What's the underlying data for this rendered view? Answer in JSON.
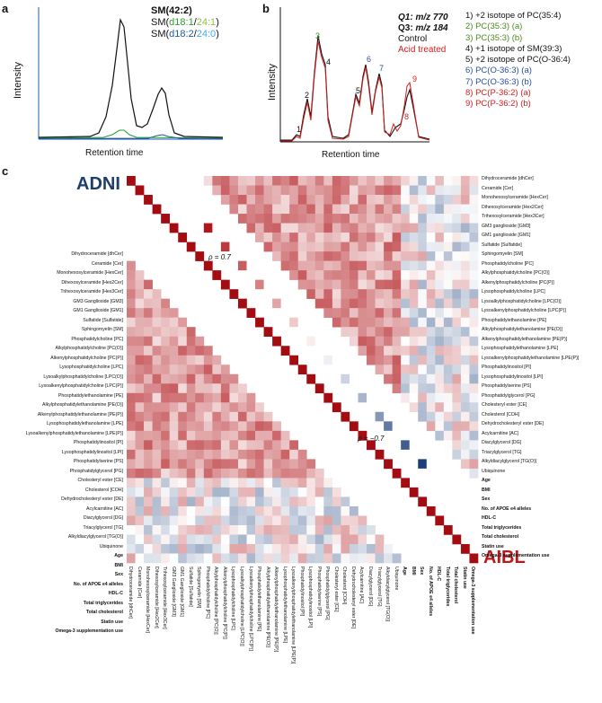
{
  "panel_a": {
    "letter": "a",
    "y_label": "Intensity",
    "x_label": "Retention time",
    "legend": [
      {
        "text": "SM(42:2)",
        "parts": [
          {
            "t": "SM(42:2)",
            "c": "#111111"
          }
        ],
        "bold": true
      },
      {
        "parts": [
          {
            "t": "SM(",
            "c": "#111111"
          },
          {
            "t": "d18:1",
            "c": "#2b9e2b"
          },
          {
            "t": "/",
            "c": "#111111"
          },
          {
            "t": "24:1",
            "c": "#8bc34a"
          },
          {
            "t": ")",
            "c": "#111111"
          }
        ]
      },
      {
        "parts": [
          {
            "t": "SM(",
            "c": "#111111"
          },
          {
            "t": "d18:2",
            "c": "#1e5aa8"
          },
          {
            "t": "/",
            "c": "#111111"
          },
          {
            "t": "24:0",
            "c": "#3fa9f5"
          },
          {
            "t": ")",
            "c": "#111111"
          }
        ]
      }
    ]
  },
  "panel_b": {
    "letter": "b",
    "y_label": "Intensity",
    "x_label": "Retention time",
    "q1": {
      "label": "Q1:",
      "value": "m/z 770"
    },
    "q3": {
      "label": "Q3:",
      "value": "m/z 184"
    },
    "control_label": "Control",
    "acid_label": "Acid treated",
    "peak_labels": [
      {
        "n": "1",
        "color": "#111111"
      },
      {
        "n": "2",
        "color": "#111111"
      },
      {
        "n": "3",
        "color": "#4a8a1e"
      },
      {
        "n": "4",
        "color": "#111111"
      },
      {
        "n": "5",
        "color": "#111111"
      },
      {
        "n": "6",
        "color": "#2b4fa3"
      },
      {
        "n": "7",
        "color": "#2b4fa3"
      },
      {
        "n": "8",
        "color": "#d42020"
      },
      {
        "n": "9",
        "color": "#d42020"
      }
    ],
    "legend": [
      {
        "text": "1) +2 isotope of PC(35:4)",
        "color": "#111111"
      },
      {
        "text": "2) PC(35:3) (a)",
        "color": "#4a8a1e"
      },
      {
        "text": "3) PC(35:3) (b)",
        "color": "#4a8a1e"
      },
      {
        "text": "4) +1 isotope of SM(39:3)",
        "color": "#111111"
      },
      {
        "text": "5) +2 isotope of PC(O-36:4)",
        "color": "#111111"
      },
      {
        "text": "6) PC(O-36:3) (a)",
        "color": "#2b4fa3"
      },
      {
        "text": "7) PC(O-36:3) (b)",
        "color": "#2b4fa3"
      },
      {
        "text": "8) PC(P-36:2) (a)",
        "color": "#d42020"
      },
      {
        "text": "9) PC(P-36:2) (b)",
        "color": "#d42020"
      }
    ]
  },
  "panel_c": {
    "letter": "c",
    "adni_label": "ADNI",
    "aibl_label": "AIBL",
    "rho_pos": "ρ = 0.7",
    "rho_neg": "ρ = −0.7",
    "colors": {
      "positive": "#b0161b",
      "negative": "#1c3f7a",
      "adni": "#1c3f6e",
      "aibl": "#c0151a"
    },
    "rows": [
      {
        "label": "Dihydroceramide [dhCer]",
        "bold": false
      },
      {
        "label": "Ceramide [Cer]",
        "bold": false
      },
      {
        "label": "Monohexosylceramide [HexCer]",
        "bold": false
      },
      {
        "label": "Dihexosylceramide [Hex2Cer]",
        "bold": false
      },
      {
        "label": "Trihexosylceramide [Hex3Cer]",
        "bold": false
      },
      {
        "label": "GM3 ganglioside [GM3]",
        "bold": false
      },
      {
        "label": "GM1 ganglioside [GM1]",
        "bold": false
      },
      {
        "label": "Sulfatide [Sulfatide]",
        "bold": false
      },
      {
        "label": "Sphingomyelin [SM]",
        "bold": false
      },
      {
        "label": "Phosphatidylcholine [PC]",
        "bold": false
      },
      {
        "label": "Alkylphosphatidylcholine [PC(O)]",
        "bold": false
      },
      {
        "label": "Alkenylphosphatidylcholine [PC(P)]",
        "bold": false
      },
      {
        "label": "Lysophosphatidylcholine [LPC]",
        "bold": false
      },
      {
        "label": "Lysoalkylphosphatidylcholine [LPC(O)]",
        "bold": false
      },
      {
        "label": "Lysoalkenylphosphatidylcholine [LPC(P)]",
        "bold": false
      },
      {
        "label": "Phosphatidylethanolamine [PE]",
        "bold": false
      },
      {
        "label": "Alkylphosphatidylethanolamine [PE(O)]",
        "bold": false
      },
      {
        "label": "Alkenylphosphatidylethanolamine [PE(P)]",
        "bold": false
      },
      {
        "label": "Lysophosphatidylethanolamine [LPE]",
        "bold": false
      },
      {
        "label": "Lysoalkenylphosphatidylethanolamine [LPE(P)]",
        "bold": false
      },
      {
        "label": "Phosphatidylinositol [PI]",
        "bold": false
      },
      {
        "label": "Lysophosphatidylinositol [LPI]",
        "bold": false
      },
      {
        "label": "Phosphatidylserine [PS]",
        "bold": false
      },
      {
        "label": "Phosphatidylglycerol [PG]",
        "bold": false
      },
      {
        "label": "Cholesteryl ester [CE]",
        "bold": false
      },
      {
        "label": "Cholesterol [COH]",
        "bold": false
      },
      {
        "label": "Dehydrocholesteryl ester [DE]",
        "bold": false
      },
      {
        "label": "Acylcarnitine [AC]",
        "bold": false
      },
      {
        "label": "Diacylglycerol [DG]",
        "bold": false
      },
      {
        "label": "Triacylglycerol [TG]",
        "bold": false
      },
      {
        "label": "Alkyldiacylglycerol [TG(O)]",
        "bold": false
      },
      {
        "label": "Ubiquinone",
        "bold": false
      },
      {
        "label": "Age",
        "bold": true
      },
      {
        "label": "BMI",
        "bold": true
      },
      {
        "label": "Sex",
        "bold": true
      },
      {
        "label": "No. of APOE e4 alleles",
        "bold": true
      },
      {
        "label": "HDL-C",
        "bold": true
      },
      {
        "label": "Total triglycerides",
        "bold": true
      },
      {
        "label": "Total cholesterol",
        "bold": true
      },
      {
        "label": "Statin use",
        "bold": true
      },
      {
        "label": "Omega-3 supplementation use",
        "bold": true
      }
    ],
    "left_labels": [
      "Dihydroceramide [dhCer]",
      "Ceramide [Cer]",
      "Monohexosylceramide [HexCer]",
      "Dihexosylceramide [Hex2Cer]",
      "Trihexosylceramide [Hex3Cer]",
      "GM3 Ganglioside [GM3]",
      "GM1 Ganglioside [GM1]",
      "Sulfatide [Sulfatide]",
      "Sphingomyelin [SM]",
      "Phosphatidylcholine [PC]",
      "Alkylphosphatidylcholine [PC(O)]",
      "Alkenylphosphatidylcholine [PC(P)]",
      "Lysophosphatidylcholine [LPC]",
      "Lysoalkylphosphatidylcholine [LPC(O)]",
      "Lysoalkenylphosphatidylcholine [LPC(P)]",
      "Phosphatidylethanolamine [PE]",
      "Alkylphosphatidylethanolamine [PE(O)]",
      "Alkenylphosphatidylethanolamine [PE(P)]",
      "Lysophosphatidylethanolamine [LPE]",
      "Lysoalkenylphosphatidylethanolamine [LPE(P)]",
      "Phosphatidylinositol [PI]",
      "Lysophosphatidylinositol [LPI]",
      "Phosphatidylserine [PS]",
      "Phosphatidylglycerol [PG]",
      "Cholesteryl ester [CE]",
      "Cholesterol [COH]",
      "Dehydrocholesteryl ester [DE]",
      "Acylcarnitine [AC]",
      "Diacylglycerol  [DG]",
      "Triacylglycerol  [TG]",
      "Alkyldiacylglycerol [TG(O)]",
      "Ubiquinone",
      "Age",
      "BMI",
      "Sex",
      "No. of APOE e4 alleles",
      "HDL-C",
      "Total triglycerides",
      "Total cholesterol",
      "Statin use",
      "Omega-3 supplementation use"
    ],
    "bottom_labels": [
      "Dihydroceramide [dhCer]",
      "Ceramide [Cer]",
      "Monohexosylceramide [HexCer]",
      "Dihexosylceramide [Hex2Cer]",
      "Trihexosylceramide [Hex3Cer]",
      "GM3 Ganglioside [GM3]",
      "GM1 Ganglioside [GM1]",
      "Sulfatide [Sulfatide]",
      "Sphingomyelin [SM]",
      "Phosphatidylcholine [PC]",
      "Alkylphosphatidylcholine [PC(O)]",
      "Alkenylphosphatidylcholine [PC(P)]",
      "Lysophosphatidylcholine [LPC]",
      "Lysoalkylphosphatidylcholine [LPC(O)]",
      "Lysoalkenylphosphatidylcholine [LPC(P)]",
      "Phosphatidylethanolamine [PE]",
      "Alkylphosphatidylethanolamine [PE(O)]",
      "Alkenylphosphatidylethanolamine [PE(P)]",
      "Lysophosphatidylethanolamine [LPE]",
      "Lysoalkenylphosphatidylethanolamine [LPE(P)]",
      "Phosphatidylinositol [PI]",
      "Lysophosphatidylinositol [LPI]",
      "Phosphatidylserine [PS]",
      "Phosphatidylglycerol [PG]",
      "Cholesteryl ester [CE]",
      "Cholesterol [COH]",
      "Dehydrocholesteryl ester [DE]",
      "Acylcarnitine [AC]",
      "Diacylglycerol  [DG]",
      "Triacylglycerol  [TG]",
      "Alkyldiacylglycerol [TG(O)]",
      "Ubiquinone",
      "Age",
      "BMI",
      "Sex",
      "No. of APOE e4 alleles",
      "HDL-C",
      "Total triglycerides",
      "Total cholesterol",
      "Statin use",
      "Omega-3 supplementation use"
    ]
  }
}
